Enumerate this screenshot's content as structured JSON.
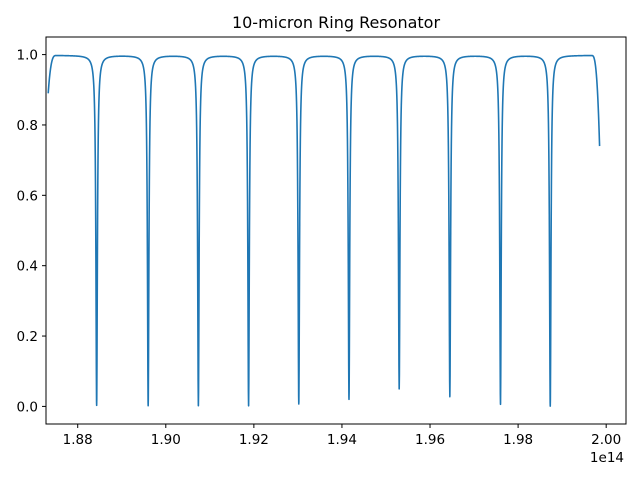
{
  "chart_data": {
    "type": "line",
    "title": "10-micron Ring Resonator",
    "xlabel": "",
    "ylabel": "",
    "x_offset_label": "1e14",
    "xlim": [
      1.8728,
      2.0045
    ],
    "ylim": [
      -0.05,
      1.05
    ],
    "x_ticks": [
      1.88,
      1.9,
      1.92,
      1.94,
      1.96,
      1.98,
      2.0
    ],
    "x_tick_labels": [
      "1.88",
      "1.90",
      "1.92",
      "1.94",
      "1.96",
      "1.98",
      "2.00"
    ],
    "y_ticks": [
      0.0,
      0.2,
      0.4,
      0.6,
      0.8,
      1.0
    ],
    "y_tick_labels": [
      "0.0",
      "0.2",
      "0.4",
      "0.6",
      "0.8",
      "1.0"
    ],
    "grid": false,
    "legend": "none",
    "series": [
      {
        "color": "#1f77b4",
        "x_start": 1.8733,
        "x_end": 1.9985,
        "y_start": 0.89,
        "y_end": 0.74,
        "baseline": 0.998,
        "resonances": [
          {
            "x": 1.8843,
            "min": 0.003
          },
          {
            "x": 1.896,
            "min": 0.002
          },
          {
            "x": 1.9074,
            "min": 0.002
          },
          {
            "x": 1.9188,
            "min": 0.002
          },
          {
            "x": 1.9302,
            "min": 0.007
          },
          {
            "x": 1.9416,
            "min": 0.02
          },
          {
            "x": 1.953,
            "min": 0.05
          },
          {
            "x": 1.9645,
            "min": 0.028
          },
          {
            "x": 1.976,
            "min": 0.006
          },
          {
            "x": 1.9873,
            "min": 0.001
          }
        ]
      }
    ]
  }
}
